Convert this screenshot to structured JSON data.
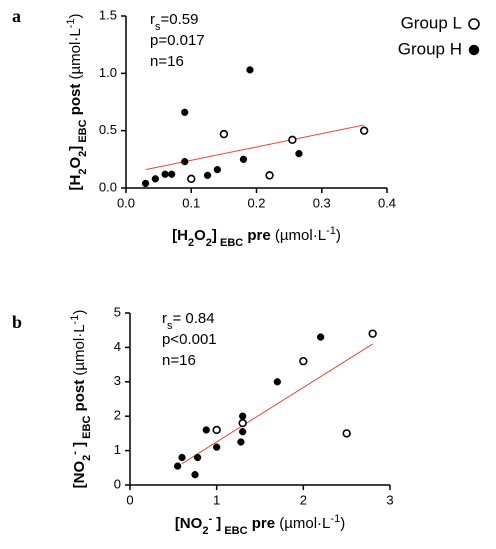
{
  "chart_data": [
    {
      "type": "scatter",
      "panel_label": "a",
      "xlim": [
        0,
        0.4
      ],
      "ylim": [
        0,
        1.5
      ],
      "xticks": [
        {
          "value": 0,
          "label": "0.0"
        },
        0.1,
        0.2,
        0.3,
        0.4
      ],
      "yticks": [
        {
          "value": 0,
          "label": "0.0"
        },
        0.5,
        {
          "value": 1,
          "label": "1.0"
        },
        1.5
      ],
      "x_label": [
        {
          "text": "[H",
          "bold": true
        },
        {
          "text": "2",
          "bold": true,
          "shift": "sub"
        },
        {
          "text": "O",
          "bold": true
        },
        {
          "text": "2",
          "bold": true,
          "shift": "sub"
        },
        {
          "text": "]",
          "bold": true
        },
        {
          "text": " EBC",
          "bold": true,
          "shift": "sub"
        },
        {
          "text": " pre ",
          "bold": true
        },
        {
          "text": "(µmol·L"
        },
        {
          "text": "-1",
          "shift": "super"
        },
        {
          "text": ")"
        }
      ],
      "y_label": [
        {
          "text": "[H",
          "bold": true
        },
        {
          "text": "2",
          "bold": true,
          "shift": "sub"
        },
        {
          "text": "O",
          "bold": true
        },
        {
          "text": "2",
          "bold": true,
          "shift": "sub"
        },
        {
          "text": "]",
          "bold": true
        },
        {
          "text": " EBC",
          "bold": true,
          "shift": "sub"
        },
        {
          "text": " post ",
          "bold": true
        },
        {
          "text": "(µmol·L"
        },
        {
          "text": "-1",
          "shift": "super"
        },
        {
          "text": ")"
        }
      ],
      "stats": [
        [
          {
            "text": "r"
          },
          {
            "text": "s",
            "shift": "sub"
          },
          {
            "text": "=0.59"
          }
        ],
        [
          {
            "text": "p=0.017"
          }
        ],
        [
          {
            "text": "n=16"
          }
        ]
      ],
      "legend": "upper right",
      "series": [
        {
          "name": "Group L",
          "marker": "open",
          "color": "#000000",
          "x": [
            0.1,
            0.15,
            0.22,
            0.255,
            0.365
          ],
          "values": [
            0.08,
            0.47,
            0.11,
            0.42,
            0.5
          ]
        },
        {
          "name": "Group H",
          "marker": "filled",
          "color": "#000000",
          "x": [
            0.03,
            0.045,
            0.06,
            0.07,
            0.09,
            0.09,
            0.125,
            0.14,
            0.18,
            0.19,
            0.265
          ],
          "values": [
            0.04,
            0.08,
            0.12,
            0.12,
            0.66,
            0.23,
            0.11,
            0.16,
            0.25,
            1.03,
            0.3
          ]
        }
      ],
      "fit_line": {
        "color": "#e8463a",
        "x": [
          0.03,
          0.365
        ],
        "values": [
          0.16,
          0.55
        ]
      }
    },
    {
      "type": "scatter",
      "panel_label": "b",
      "xlim": [
        0,
        3
      ],
      "ylim": [
        0,
        5
      ],
      "xticks": [
        0,
        1,
        2,
        3
      ],
      "yticks": [
        0,
        1,
        2,
        3,
        4,
        5
      ],
      "x_label": [
        {
          "text": "[NO",
          "bold": true
        },
        {
          "text": "2",
          "bold": true,
          "shift": "sub"
        },
        {
          "text": "-",
          "bold": true,
          "shift": "super"
        },
        {
          "text": " ]",
          "bold": true
        },
        {
          "text": " EBC",
          "bold": true,
          "shift": "sub"
        },
        {
          "text": " pre ",
          "bold": true
        },
        {
          "text": "(µmol·L"
        },
        {
          "text": "-1",
          "shift": "super"
        },
        {
          "text": ")"
        }
      ],
      "y_label": [
        {
          "text": "[NO",
          "bold": true
        },
        {
          "text": "2",
          "bold": true,
          "shift": "sub"
        },
        {
          "text": "-",
          "bold": true,
          "shift": "super"
        },
        {
          "text": " ]",
          "bold": true
        },
        {
          "text": " EBC",
          "bold": true,
          "shift": "sub"
        },
        {
          "text": " post ",
          "bold": true
        },
        {
          "text": "(µmol·L"
        },
        {
          "text": "-1",
          "shift": "super"
        },
        {
          "text": ")"
        }
      ],
      "stats": [
        [
          {
            "text": "r"
          },
          {
            "text": "s",
            "shift": "sub"
          },
          {
            "text": "= 0.84"
          }
        ],
        [
          {
            "text": "p<0.001"
          }
        ],
        [
          {
            "text": "n=16"
          }
        ]
      ],
      "series": [
        {
          "marker": "open",
          "color": "#000000",
          "x": [
            1.0,
            1.3,
            2.0,
            2.5,
            2.8
          ],
          "values": [
            1.6,
            1.8,
            3.6,
            1.5,
            4.4
          ]
        },
        {
          "marker": "filled",
          "color": "#000000",
          "x": [
            0.55,
            0.6,
            0.75,
            0.78,
            0.88,
            1.0,
            1.28,
            1.3,
            1.3,
            1.7,
            2.2
          ],
          "values": [
            0.55,
            0.8,
            0.3,
            0.8,
            1.6,
            1.1,
            1.25,
            1.55,
            2.0,
            3.0,
            4.3
          ]
        }
      ],
      "fit_line": {
        "color": "#e8463a",
        "x": [
          0.6,
          2.8
        ],
        "values": [
          0.62,
          4.1
        ]
      }
    }
  ]
}
